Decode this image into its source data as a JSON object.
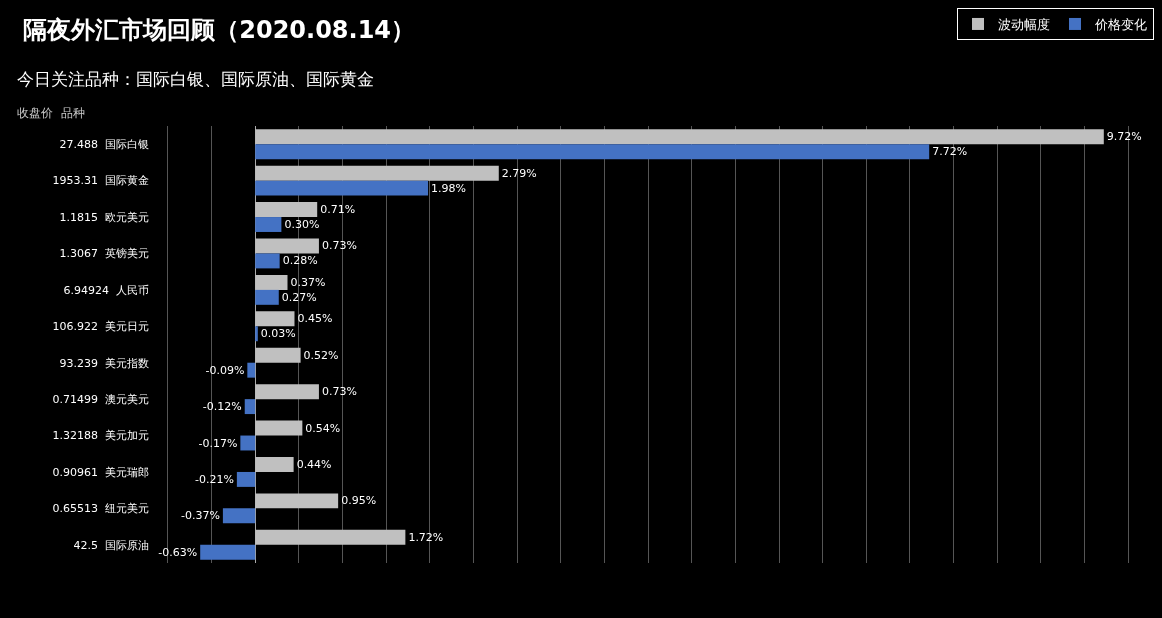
{
  "chart_data": {
    "type": "bar",
    "orientation": "horizontal",
    "title": "隔夜外汇市场回顾（2020.08.14）",
    "subtitle": "今日关注品种：国际白银、国际原油、国际黄金",
    "ylabel": "收盘价  品种",
    "categories": [
      "27.488  国际白银",
      "1953.31  国际黄金",
      "1.1815  欧元美元",
      "1.3067  英镑美元",
      "6.94924  人民币",
      "106.922  美元日元",
      "93.239  美元指数",
      "0.71499  澳元美元",
      "1.32188  美元加元",
      "0.90961  美元瑞郎",
      "0.65513  纽元美元",
      "42.5  国际原油"
    ],
    "series": [
      {
        "name": "波动幅度",
        "color": "#c0c0c0",
        "values": [
          9.72,
          2.79,
          0.71,
          0.73,
          0.37,
          0.45,
          0.52,
          0.73,
          0.54,
          0.44,
          0.95,
          1.72
        ],
        "value_labels": [
          "9.72%",
          "2.79%",
          "0.71%",
          "0.73%",
          "0.37%",
          "0.45%",
          "0.52%",
          "0.73%",
          "0.54%",
          "0.44%",
          "0.95%",
          "1.72%"
        ]
      },
      {
        "name": "价格变化",
        "color": "#4472c4",
        "values": [
          7.72,
          1.98,
          0.3,
          0.28,
          0.27,
          0.03,
          -0.09,
          -0.12,
          -0.17,
          -0.21,
          -0.37,
          -0.63
        ],
        "value_labels": [
          "7.72%",
          "1.98%",
          "0.30%",
          "0.28%",
          "0.27%",
          "0.03%",
          "-0.09%",
          "-0.12%",
          "-0.17%",
          "-0.21%",
          "-0.37%",
          "-0.63%"
        ]
      }
    ],
    "grid": "x",
    "legend": "top right",
    "tick_labels": "y"
  }
}
